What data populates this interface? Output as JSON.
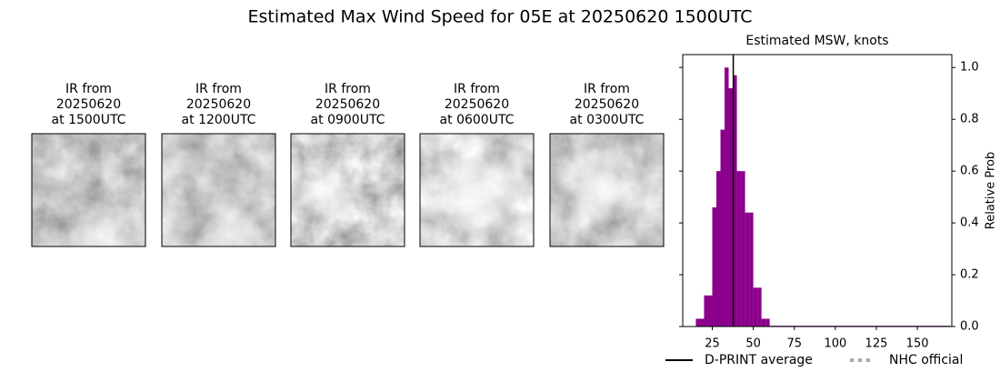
{
  "title": "Estimated Max Wind Speed for 05E at 20250620 1500UTC",
  "panels": [
    {
      "lines": [
        "IR from",
        "20250620",
        "at 1500UTC"
      ]
    },
    {
      "lines": [
        "IR from",
        "20250620",
        "at 1200UTC"
      ]
    },
    {
      "lines": [
        "IR from",
        "20250620",
        "at 0900UTC"
      ]
    },
    {
      "lines": [
        "IR from",
        "20250620",
        "at 0600UTC"
      ]
    },
    {
      "lines": [
        "IR from",
        "20250620",
        "at 0300UTC"
      ]
    }
  ],
  "chart_data": {
    "type": "histogram",
    "title": "Estimated MSW, knots",
    "ylabel": "Relative Prob",
    "color": "#8b008b",
    "bins": [
      15,
      17.5,
      20,
      22.5,
      25,
      27.5,
      30,
      32.5,
      35,
      37.5,
      40,
      42.5,
      45,
      47.5,
      50,
      52.5,
      55,
      57.5,
      60,
      170
    ],
    "values": [
      0.03,
      0.03,
      0.12,
      0.12,
      0.46,
      0.6,
      0.76,
      1.0,
      0.92,
      0.97,
      0.6,
      0.6,
      0.44,
      0.44,
      0.15,
      0.15,
      0.03,
      0.03,
      0.003
    ],
    "xlim": [
      7,
      171
    ],
    "ylim": [
      0,
      1.05
    ],
    "xticks": [
      25,
      50,
      75,
      100,
      125,
      150
    ],
    "yticks": [
      {
        "value": 0,
        "label": "0.0"
      },
      {
        "value": 0.2,
        "label": "0.2"
      },
      {
        "value": 0.4,
        "label": "0.4"
      },
      {
        "value": 0.6,
        "label": "0.6"
      },
      {
        "value": 0.8,
        "label": "0.8"
      },
      {
        "value": 1.0,
        "label": "1.0"
      }
    ],
    "dprint_average": 37.8,
    "legend": [
      "D-PRINT average",
      "NHC official"
    ]
  }
}
